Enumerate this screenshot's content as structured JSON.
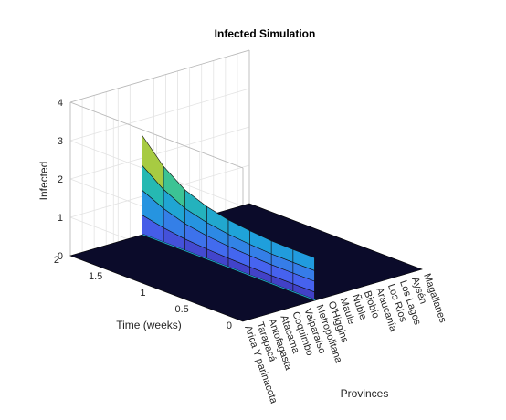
{
  "chart_data": {
    "type": "surface",
    "title": "Infected Simulation",
    "xlabel": "Provinces",
    "ylabel": "Time (weeks)",
    "zlabel": "Infected",
    "categories": [
      "Arica Y parinacota",
      "Tarapacá",
      "Antofagasta",
      "Atacama",
      "Coquimbo",
      "Valparaíso",
      "Metropolitana",
      "O'Higgins",
      "Maule",
      "Ñuble",
      "Biobío",
      "Araucanía",
      "Los Ríos",
      "Los Lagos",
      "Aysén",
      "Magallanes"
    ],
    "y_ticks": [
      0,
      0.5,
      1,
      1.5,
      2
    ],
    "z_ticks": [
      0,
      1,
      2,
      3,
      4
    ],
    "ylim": [
      0,
      2
    ],
    "zlim": [
      0,
      4
    ],
    "grid": true,
    "colormap": "parula",
    "surface_province": "Metropolitana",
    "time_steps": [
      0.25,
      0.5,
      0.75,
      1.0,
      1.25,
      1.5,
      1.75,
      2.0
    ],
    "infected_at_time_steps": [
      0.05,
      0.1,
      0.3,
      0.6,
      1.0,
      1.5,
      2.0,
      2.6
    ],
    "top_edge_heights": [
      1.12,
      1.13,
      1.18,
      1.25,
      1.38,
      1.6,
      2.0,
      2.6
    ]
  }
}
